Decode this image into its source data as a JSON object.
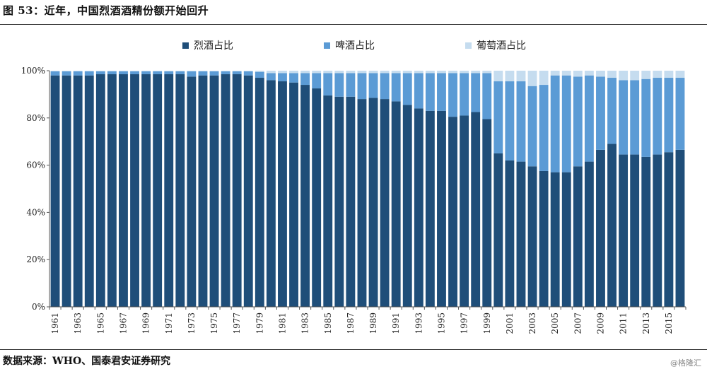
{
  "header": {
    "title": "图 53：近年，中国烈酒酒精份额开始回升"
  },
  "footer": {
    "source": "数据来源：WHO、国泰君安证券研究",
    "watermark": "@格隆汇"
  },
  "colors": {
    "spirits": "#1f4e79",
    "beer": "#5b9bd5",
    "wine": "#c5dcef"
  },
  "chart_data": {
    "type": "bar",
    "stacked": true,
    "title": "近年，中国烈酒酒精份额开始回升",
    "xlabel": "",
    "ylabel": "",
    "ylim": [
      0,
      100
    ],
    "ytick_labels": [
      "0%",
      "20%",
      "40%",
      "60%",
      "80%",
      "100%"
    ],
    "categories": [
      1961,
      1962,
      1963,
      1964,
      1965,
      1966,
      1967,
      1968,
      1969,
      1970,
      1971,
      1972,
      1973,
      1974,
      1975,
      1976,
      1977,
      1978,
      1979,
      1980,
      1981,
      1982,
      1983,
      1984,
      1985,
      1986,
      1987,
      1988,
      1989,
      1990,
      1991,
      1992,
      1993,
      1994,
      1995,
      1996,
      1997,
      1998,
      1999,
      2000,
      2001,
      2002,
      2003,
      2004,
      2005,
      2006,
      2007,
      2008,
      2009,
      2010,
      2011,
      2012,
      2013,
      2014,
      2015,
      2016
    ],
    "x_tick_labels": [
      "1961",
      "1963",
      "1965",
      "1967",
      "1969",
      "1971",
      "1973",
      "1975",
      "1977",
      "1979",
      "1981",
      "1983",
      "1985",
      "1987",
      "1989",
      "1991",
      "1993",
      "1995",
      "1997",
      "1999",
      "2001",
      "2003",
      "2005",
      "2007",
      "2009",
      "2011",
      "2013",
      "2015"
    ],
    "legend_position": "top",
    "series": [
      {
        "name": "烈酒占比",
        "values": [
          98,
          98,
          98,
          98,
          98.5,
          98.5,
          98.5,
          98.5,
          98.5,
          98.5,
          98.5,
          98.5,
          97.5,
          98,
          98,
          98.5,
          98.5,
          98,
          97,
          96,
          95.5,
          95,
          94,
          92.5,
          89.5,
          89,
          89,
          88,
          88.5,
          88,
          87,
          85.5,
          84,
          83,
          83,
          80.5,
          81,
          82.5,
          79.5,
          65,
          62,
          61.5,
          59.5,
          57.5,
          57,
          57,
          59.5,
          61.5,
          66.5,
          69,
          64.5,
          64.5,
          63.5,
          64.5,
          65.5,
          66.5
        ]
      },
      {
        "name": "啤酒占比",
        "values": [
          1.7,
          1.7,
          1.7,
          1.7,
          1.2,
          1.2,
          1.2,
          1.2,
          1.2,
          1.2,
          1.2,
          1.2,
          2.2,
          1.7,
          1.7,
          1.2,
          1.2,
          1.7,
          2.5,
          3,
          3.5,
          4,
          5,
          6.5,
          9.5,
          10,
          10,
          11,
          10.5,
          11,
          12,
          13.5,
          15,
          16,
          16,
          18.5,
          18,
          16.5,
          19.5,
          30.5,
          33.5,
          34,
          34,
          36.5,
          41,
          41,
          38,
          36.5,
          31,
          28,
          31.5,
          31.5,
          33,
          32.5,
          31.5,
          30.5
        ]
      },
      {
        "name": "葡萄酒占比",
        "values": [
          0.3,
          0.3,
          0.3,
          0.3,
          0.3,
          0.3,
          0.3,
          0.3,
          0.3,
          0.3,
          0.3,
          0.3,
          0.3,
          0.3,
          0.3,
          0.3,
          0.3,
          0.3,
          0.5,
          1,
          1,
          1,
          1,
          1,
          1,
          1,
          1,
          1,
          1,
          1,
          1,
          1,
          1,
          1,
          1,
          1,
          1,
          1,
          1,
          4.5,
          4.5,
          4.5,
          6.5,
          6,
          2,
          2,
          2.5,
          2,
          2.5,
          3,
          4,
          4,
          3.5,
          3,
          3,
          3
        ]
      }
    ]
  }
}
